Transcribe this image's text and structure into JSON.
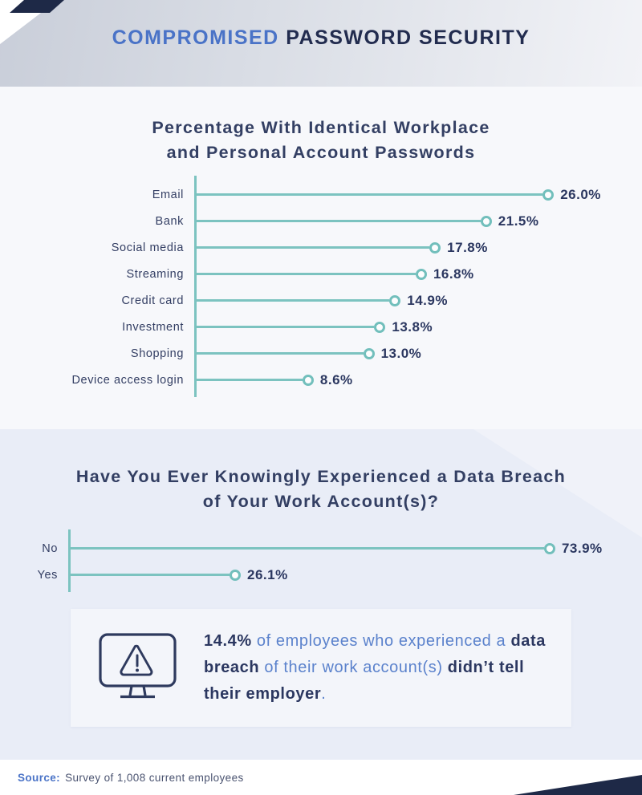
{
  "header": {
    "title_accent": "COMPROMISED",
    "title_rest": " PASSWORD SECURITY"
  },
  "section1": {
    "title_line1": "Percentage With Identical Workplace",
    "title_line2": "and Personal Account Passwords"
  },
  "section2": {
    "title_line1": "Have You Ever Knowingly Experienced a Data Breach",
    "title_line2": "of Your Work Account(s)?"
  },
  "callout": {
    "icon": "monitor-warning-icon",
    "segments": [
      {
        "text": "14.4%",
        "style": "bold-navy"
      },
      {
        "text": " of employees who experienced a ",
        "style": "blue"
      },
      {
        "text": "data breach",
        "style": "bold-navy"
      },
      {
        "text": " of their work account(s) ",
        "style": "blue"
      },
      {
        "text": "didn’t tell their employer",
        "style": "bold-navy"
      },
      {
        "text": ".",
        "style": "blue"
      }
    ]
  },
  "footer": {
    "source_label": "Source:",
    "source_text": "Survey of 1,008 current employees"
  },
  "colors": {
    "accent_blue": "#4a73c7",
    "navy": "#2b3760",
    "teal": "#7cc3c0",
    "section1_bg": "#f7f8fb",
    "section2_bg": "#e9edf7",
    "callout_bg": "#f3f5fa",
    "corner_accent": "#1e2947"
  },
  "chart_data": [
    {
      "type": "bar",
      "variant": "lollipop-horizontal",
      "title": "Percentage With Identical Workplace and Personal Account Passwords",
      "categories": [
        "Email",
        "Bank",
        "Social media",
        "Streaming",
        "Credit card",
        "Investment",
        "Shopping",
        "Device access login"
      ],
      "values": [
        26.0,
        21.5,
        17.8,
        16.8,
        14.9,
        13.8,
        13.0,
        8.6
      ],
      "value_labels": [
        "26.0%",
        "21.5%",
        "17.8%",
        "16.8%",
        "14.9%",
        "13.8%",
        "13.0%",
        "8.6%"
      ],
      "unit": "%",
      "xlim": [
        0,
        28
      ],
      "grid": false,
      "legend": false
    },
    {
      "type": "bar",
      "variant": "lollipop-horizontal",
      "title": "Have You Ever Knowingly Experienced a Data Breach of Your Work Account(s)?",
      "categories": [
        "No",
        "Yes"
      ],
      "values": [
        73.9,
        26.1
      ],
      "value_labels": [
        "73.9%",
        "26.1%"
      ],
      "unit": "%",
      "xlim": [
        0,
        80
      ],
      "grid": false,
      "legend": false
    }
  ]
}
